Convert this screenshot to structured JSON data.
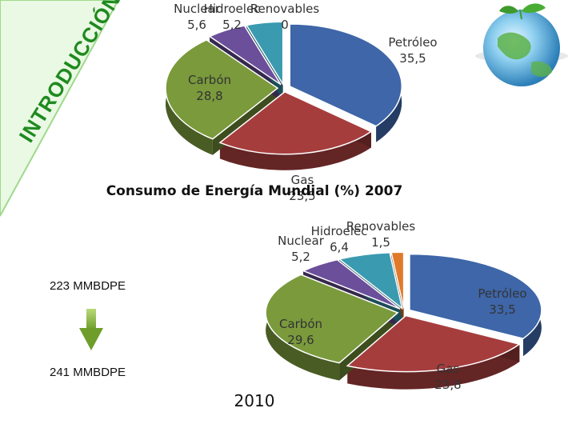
{
  "colors": {
    "petroleo": "#3e66a8",
    "gas": "#a63d3d",
    "carbon": "#7a9a3c",
    "nuclear": "#6b4f9a",
    "hidroelec": "#3a9ab0",
    "renovables": "#e07a2a",
    "banner_fill": "#eaf9e4",
    "banner_stroke": "#9fd98c",
    "banner_text": "#1f8a1f"
  },
  "banner": {
    "text": "INTRODUCCIÓN"
  },
  "chart_data": [
    {
      "type": "pie",
      "title": "Consumo de Energía Mundial (%) 2007",
      "categories": [
        "Petróleo",
        "Gas",
        "Carbón",
        "Nuclear",
        "Hidroelec",
        "Renovables"
      ],
      "values": [
        35.5,
        23.5,
        28.8,
        5.6,
        5.2,
        0
      ],
      "labels": [
        {
          "name": "Petróleo",
          "value": "35,5"
        },
        {
          "name": "Gas",
          "value": "23,5"
        },
        {
          "name": "Carbón",
          "value": "28,8"
        },
        {
          "name": "Nuclear",
          "value": "5,6"
        },
        {
          "name": "Hidroelec",
          "value": "5,2"
        },
        {
          "name": "Renovables",
          "value": "0"
        }
      ]
    },
    {
      "type": "pie",
      "title": "2010",
      "categories": [
        "Petróleo",
        "Gas",
        "Carbón",
        "Nuclear",
        "Hidroelec",
        "Renovables"
      ],
      "values": [
        33.5,
        23.8,
        29.6,
        5.2,
        6.4,
        1.5
      ],
      "labels": [
        {
          "name": "Petróleo",
          "value": "33,5"
        },
        {
          "name": "Gas",
          "value": "23,8"
        },
        {
          "name": "Carbón",
          "value": "29,6"
        },
        {
          "name": "Nuclear",
          "value": "5,2"
        },
        {
          "name": "Hidroelec",
          "value": "6,4"
        },
        {
          "name": "Renovables",
          "value": "1,5"
        }
      ]
    }
  ],
  "side_labels": {
    "top": "223 MMBDPE",
    "bottom": "241 MMBDPE"
  }
}
